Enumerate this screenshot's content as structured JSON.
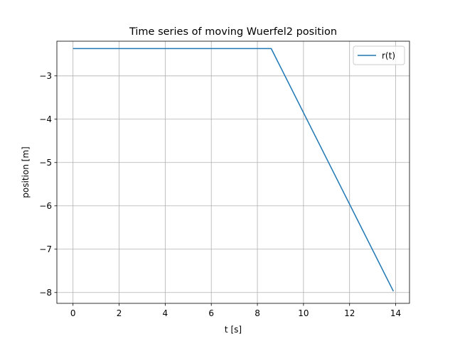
{
  "chart_data": {
    "type": "line",
    "title": "Time series of moving Wuerfel2 position",
    "xlabel": "t [s]",
    "ylabel": "position [m]",
    "xlim": [
      -0.7,
      14.6
    ],
    "ylim": [
      -8.25,
      -2.2
    ],
    "xticks": [
      0,
      2,
      4,
      6,
      8,
      10,
      12,
      14
    ],
    "xtick_labels": [
      "0",
      "2",
      "4",
      "6",
      "8",
      "10",
      "12",
      "14"
    ],
    "yticks": [
      -3,
      -4,
      -5,
      -6,
      -7,
      -8
    ],
    "ytick_labels": [
      "−3",
      "−4",
      "−5",
      "−6",
      "−7",
      "−8"
    ],
    "grid": true,
    "legend_position": "top-right",
    "series": [
      {
        "name": "r(t)",
        "color": "#1f77b4",
        "x": [
          0,
          8.6,
          13.9
        ],
        "y": [
          -2.37,
          -2.37,
          -7.97
        ]
      }
    ]
  }
}
